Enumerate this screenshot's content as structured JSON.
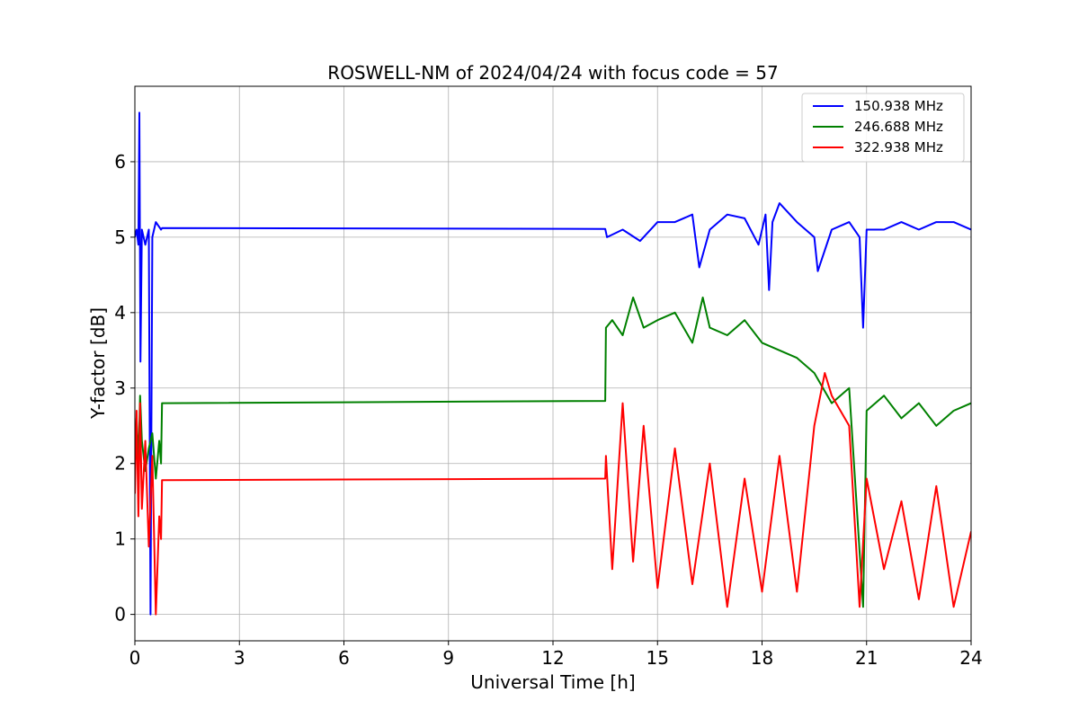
{
  "chart_data": {
    "type": "line",
    "title": "ROSWELL-NM of 2024/04/24 with focus code = 57",
    "xlabel": "Universal Time [h]",
    "ylabel": "Y-factor [dB]",
    "xlim": [
      0,
      24
    ],
    "ylim": [
      -0.35,
      7.0
    ],
    "xticks": [
      0,
      3,
      6,
      9,
      12,
      15,
      18,
      21,
      24
    ],
    "yticks": [
      0,
      1,
      2,
      3,
      4,
      5,
      6
    ],
    "grid": true,
    "legend_position": "top-right",
    "series": [
      {
        "name": "150.938 MHz",
        "color": "#0000ff",
        "points": [
          [
            0,
            5.0
          ],
          [
            0.05,
            5.1
          ],
          [
            0.1,
            4.9
          ],
          [
            0.13,
            6.65
          ],
          [
            0.16,
            3.35
          ],
          [
            0.2,
            5.1
          ],
          [
            0.3,
            4.9
          ],
          [
            0.4,
            5.1
          ],
          [
            0.45,
            0.0
          ],
          [
            0.5,
            5.0
          ],
          [
            0.6,
            5.2
          ],
          [
            0.75,
            5.1
          ],
          [
            0.78,
            5.12
          ],
          [
            13.5,
            5.11
          ],
          [
            13.55,
            5.0
          ],
          [
            14,
            5.1
          ],
          [
            14.5,
            4.95
          ],
          [
            15,
            5.2
          ],
          [
            15.5,
            5.2
          ],
          [
            16,
            5.3
          ],
          [
            16.2,
            4.6
          ],
          [
            16.5,
            5.1
          ],
          [
            17,
            5.3
          ],
          [
            17.5,
            5.25
          ],
          [
            17.9,
            4.9
          ],
          [
            18.1,
            5.3
          ],
          [
            18.2,
            4.3
          ],
          [
            18.3,
            5.2
          ],
          [
            18.5,
            5.45
          ],
          [
            19,
            5.2
          ],
          [
            19.5,
            5.0
          ],
          [
            19.6,
            4.55
          ],
          [
            20,
            5.1
          ],
          [
            20.5,
            5.2
          ],
          [
            20.8,
            5.0
          ],
          [
            20.9,
            3.8
          ],
          [
            21,
            5.1
          ],
          [
            21.5,
            5.1
          ],
          [
            22,
            5.2
          ],
          [
            22.5,
            5.1
          ],
          [
            23,
            5.2
          ],
          [
            23.5,
            5.2
          ],
          [
            24,
            5.1
          ]
        ]
      },
      {
        "name": "246.688 MHz",
        "color": "#008000",
        "points": [
          [
            0,
            2.2
          ],
          [
            0.05,
            2.6
          ],
          [
            0.1,
            2.0
          ],
          [
            0.15,
            2.9
          ],
          [
            0.2,
            2.3
          ],
          [
            0.3,
            1.9
          ],
          [
            0.4,
            2.2
          ],
          [
            0.5,
            2.4
          ],
          [
            0.6,
            1.8
          ],
          [
            0.7,
            2.3
          ],
          [
            0.75,
            2.0
          ],
          [
            0.78,
            2.8
          ],
          [
            13.5,
            2.83
          ],
          [
            13.52,
            3.8
          ],
          [
            13.7,
            3.9
          ],
          [
            14,
            3.7
          ],
          [
            14.3,
            4.2
          ],
          [
            14.6,
            3.8
          ],
          [
            15,
            3.9
          ],
          [
            15.5,
            4.0
          ],
          [
            16,
            3.6
          ],
          [
            16.3,
            4.2
          ],
          [
            16.5,
            3.8
          ],
          [
            17,
            3.7
          ],
          [
            17.5,
            3.9
          ],
          [
            18,
            3.6
          ],
          [
            18.5,
            3.5
          ],
          [
            19,
            3.4
          ],
          [
            19.5,
            3.2
          ],
          [
            20,
            2.8
          ],
          [
            20.5,
            3.0
          ],
          [
            20.9,
            0.1
          ],
          [
            21,
            2.7
          ],
          [
            21.5,
            2.9
          ],
          [
            22,
            2.6
          ],
          [
            22.5,
            2.8
          ],
          [
            23,
            2.5
          ],
          [
            23.5,
            2.7
          ],
          [
            24,
            2.8
          ]
        ]
      },
      {
        "name": "322.938 MHz",
        "color": "#ff0000",
        "points": [
          [
            0,
            1.6
          ],
          [
            0.05,
            2.7
          ],
          [
            0.1,
            1.3
          ],
          [
            0.15,
            2.8
          ],
          [
            0.2,
            1.4
          ],
          [
            0.3,
            2.3
          ],
          [
            0.4,
            0.9
          ],
          [
            0.5,
            2.1
          ],
          [
            0.6,
            0.0
          ],
          [
            0.7,
            1.3
          ],
          [
            0.75,
            1.0
          ],
          [
            0.78,
            1.78
          ],
          [
            13.5,
            1.8
          ],
          [
            13.52,
            2.1
          ],
          [
            13.7,
            0.6
          ],
          [
            14,
            2.8
          ],
          [
            14.3,
            0.7
          ],
          [
            14.6,
            2.5
          ],
          [
            15,
            0.35
          ],
          [
            15.5,
            2.2
          ],
          [
            16,
            0.4
          ],
          [
            16.5,
            2.0
          ],
          [
            17,
            0.1
          ],
          [
            17.5,
            1.8
          ],
          [
            18,
            0.3
          ],
          [
            18.5,
            2.1
          ],
          [
            19,
            0.3
          ],
          [
            19.5,
            2.5
          ],
          [
            19.8,
            3.2
          ],
          [
            20,
            2.9
          ],
          [
            20.5,
            2.5
          ],
          [
            20.8,
            0.1
          ],
          [
            21,
            1.8
          ],
          [
            21.5,
            0.6
          ],
          [
            22,
            1.5
          ],
          [
            22.5,
            0.2
          ],
          [
            23,
            1.7
          ],
          [
            23.5,
            0.1
          ],
          [
            24,
            1.1
          ]
        ]
      }
    ]
  }
}
